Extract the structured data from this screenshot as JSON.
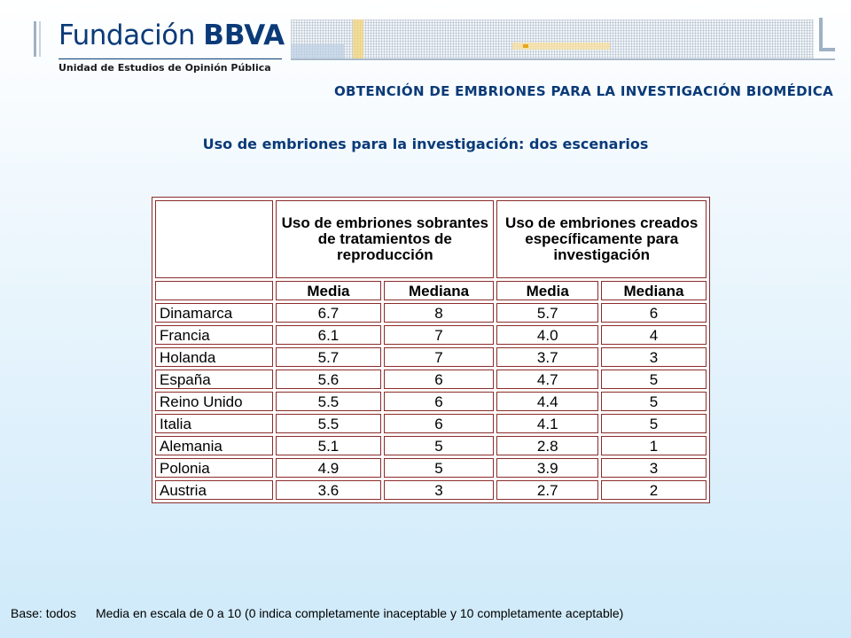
{
  "header": {
    "brand_name_part1": "Fundación",
    "brand_name_part2": "BBVA",
    "unit_name": "Unidad de Estudios de Opinión Pública",
    "section_title": "OBTENCIÓN DE EMBRIONES PARA LA INVESTIGACIÓN BIOMÉDICA"
  },
  "slide_title": "Uso de embriones para la investigación: dos escenarios",
  "table": {
    "group_headers": [
      "",
      "Uso de embriones sobrantes de tratamientos de reproducción",
      "Uso de embriones creados específicamente para investigación"
    ],
    "sub_headers": [
      "",
      "Media",
      "Mediana",
      "Media",
      "Mediana"
    ],
    "rows": [
      {
        "country": "Dinamarca",
        "values": [
          "6.7",
          "8",
          "5.7",
          "6"
        ]
      },
      {
        "country": "Francia",
        "values": [
          "6.1",
          "7",
          "4.0",
          "4"
        ]
      },
      {
        "country": "Holanda",
        "values": [
          "5.7",
          "7",
          "3.7",
          "3"
        ]
      },
      {
        "country": "España",
        "values": [
          "5.6",
          "6",
          "4.7",
          "5"
        ]
      },
      {
        "country": "Reino Unido",
        "values": [
          "5.5",
          "6",
          "4.4",
          "5"
        ]
      },
      {
        "country": "Italia",
        "values": [
          "5.5",
          "6",
          "4.1",
          "5"
        ]
      },
      {
        "country": "Alemania",
        "values": [
          "5.1",
          "5",
          "2.8",
          "1"
        ]
      },
      {
        "country": "Polonia",
        "values": [
          "4.9",
          "5",
          "3.9",
          "3"
        ]
      },
      {
        "country": "Austria",
        "values": [
          "3.6",
          "3",
          "2.7",
          "2"
        ]
      }
    ]
  },
  "footer": {
    "base": "Base: todos",
    "note": "Media en escala de 0 a 10 (0 indica completamente inaceptable y 10 completamente aceptable)"
  },
  "colors": {
    "brand_blue": "#0a3a78",
    "table_border": "#8b2b2b"
  }
}
